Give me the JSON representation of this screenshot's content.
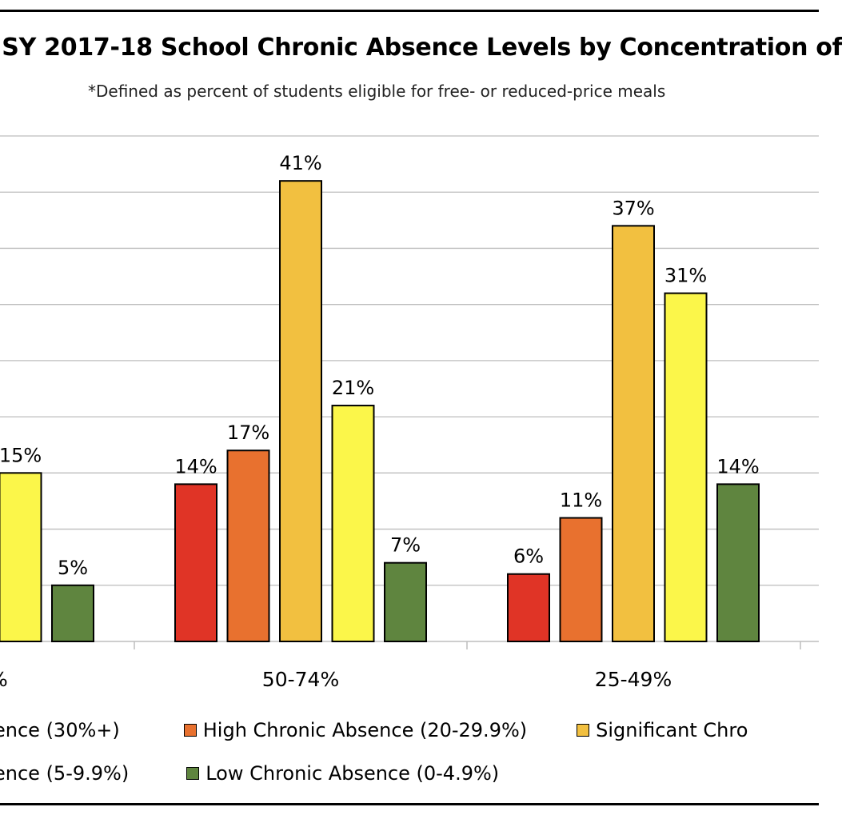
{
  "chart_data": {
    "type": "bar",
    "title": "- SY 2017-18 School Chronic Absence Levels by Concentration of",
    "subtitle": "*Defined as percent of students eligible for free- or reduced-price meals",
    "categories": [
      "%",
      "50-74%",
      "25-49%"
    ],
    "ylim": [
      0,
      45
    ],
    "grid": true,
    "legend_position": "bottom",
    "series": [
      {
        "name": "ence (30%+)",
        "color": "#e03426",
        "values": [
          null,
          14,
          6
        ],
        "labels": [
          "",
          "14%",
          "6%"
        ]
      },
      {
        "name": "High Chronic Absence (20-29.9%)",
        "color": "#e8712f",
        "values": [
          null,
          17,
          11
        ],
        "labels": [
          "",
          "17%",
          "11%"
        ]
      },
      {
        "name": "Significant Chro",
        "color": "#f2c040",
        "values": [
          null,
          41,
          37
        ],
        "labels": [
          "",
          "41%",
          "37%"
        ]
      },
      {
        "name": "ence (5-9.9%)",
        "color": "#fbf64a",
        "values": [
          15,
          21,
          31
        ],
        "labels": [
          "15%",
          "21%",
          "31%"
        ]
      },
      {
        "name": "Low Chronic Absence (0-4.9%)",
        "color": "#5f853f",
        "values": [
          5,
          7,
          14
        ],
        "labels": [
          "5%",
          "7%",
          "14%"
        ]
      }
    ]
  },
  "legend": {
    "row1": [
      "ence (30%+)",
      "High Chronic Absence (20-29.9%)",
      "Significant Chro"
    ],
    "row2": [
      "ence (5-9.9%)",
      "Low Chronic Absence (0-4.9%)"
    ]
  }
}
